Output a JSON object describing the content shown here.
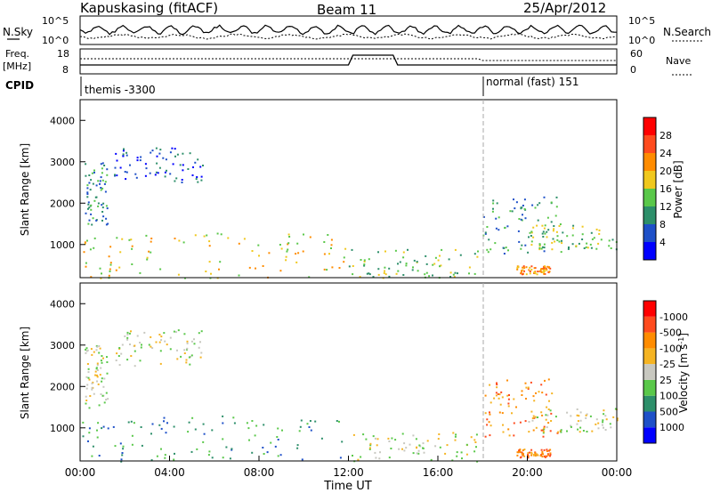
{
  "header": {
    "station": "Kapuskasing (fitACF)",
    "beam": "Beam 11",
    "date": "25/Apr/2012"
  },
  "top_panel": {
    "left_label": "N.Sky",
    "right_label": "N.Search",
    "left_ticks": [
      "10^5",
      "10^0"
    ],
    "right_ticks": [
      "10^5",
      "10^0"
    ]
  },
  "freq_panel": {
    "left_label_1": "Freq.",
    "left_label_2": "[MHz]",
    "right_label": "Nave",
    "left_ticks": [
      "18",
      "8"
    ],
    "right_ticks": [
      "60",
      "0"
    ]
  },
  "cpid": {
    "label": "CPID",
    "modes": [
      {
        "name": "themis -3300",
        "start_hour": 0.0
      },
      {
        "name": "normal (fast) 151",
        "start_hour": 18.0
      }
    ]
  },
  "x_axis": {
    "title": "Time UT",
    "ticks": [
      "00:00",
      "04:00",
      "08:00",
      "12:00",
      "16:00",
      "20:00",
      "00:00"
    ],
    "range_hours": [
      0,
      24
    ]
  },
  "chart_data": [
    {
      "type": "heatmap",
      "panel": "power",
      "ylabel": "Slant Range [km]",
      "yticks": [
        "1000",
        "2000",
        "3000",
        "4000"
      ],
      "ylim": [
        200,
        4500
      ],
      "colorbar": {
        "title": "Power [dB]",
        "labels": [
          "4",
          "8",
          "12",
          "16",
          "20",
          "24",
          "28"
        ],
        "colors": [
          "#0000ff",
          "#1e50c8",
          "#2d8f6a",
          "#5ac84a",
          "#f0c81e",
          "#ff8c00",
          "#ff4b1e",
          "#ff0000"
        ]
      },
      "regions": [
        {
          "t": [
            0.2,
            1.2
          ],
          "r": [
            1500,
            3000
          ],
          "level": 2
        },
        {
          "t": [
            1.5,
            5.5
          ],
          "r": [
            2500,
            3400
          ],
          "level": 1
        },
        {
          "t": [
            0.0,
            12.0
          ],
          "r": [
            200,
            1300
          ],
          "level": 4
        },
        {
          "t": [
            12.0,
            17.8
          ],
          "r": [
            200,
            900
          ],
          "level": 3
        },
        {
          "t": [
            18.0,
            21.5
          ],
          "r": [
            800,
            2200
          ],
          "level": 2
        },
        {
          "t": [
            20.0,
            24.0
          ],
          "r": [
            900,
            1500
          ],
          "level": 3
        },
        {
          "t": [
            19.5,
            21.0
          ],
          "r": [
            300,
            500
          ],
          "level": 5
        }
      ]
    },
    {
      "type": "heatmap",
      "panel": "velocity",
      "ylabel": "Slant Range [km]",
      "yticks": [
        "1000",
        "2000",
        "3000",
        "4000"
      ],
      "ylim": [
        200,
        4500
      ],
      "colorbar": {
        "title": "Velocity [m s^-1]",
        "labels": [
          "1000",
          "500",
          "100",
          "25",
          "-25",
          "-100",
          "-500",
          "-1000"
        ],
        "colors": [
          "#0000ff",
          "#1e50c8",
          "#2d8f6a",
          "#5ac84a",
          "#c8c8c0",
          "#f5b423",
          "#ff8c00",
          "#ff4b1e",
          "#ff0000"
        ]
      },
      "regions": [
        {
          "t": [
            0.2,
            1.2
          ],
          "r": [
            1500,
            3000
          ],
          "level": 4
        },
        {
          "t": [
            1.5,
            5.5
          ],
          "r": [
            2500,
            3400
          ],
          "level": 4
        },
        {
          "t": [
            0.0,
            12.0
          ],
          "r": [
            200,
            1300
          ],
          "level": 2
        },
        {
          "t": [
            12.0,
            17.8
          ],
          "r": [
            200,
            900
          ],
          "level": 4
        },
        {
          "t": [
            18.0,
            21.5
          ],
          "r": [
            800,
            2200
          ],
          "level": 6
        },
        {
          "t": [
            20.0,
            24.0
          ],
          "r": [
            900,
            1500
          ],
          "level": 4
        },
        {
          "t": [
            19.5,
            21.0
          ],
          "r": [
            300,
            500
          ],
          "level": 6
        }
      ]
    }
  ]
}
